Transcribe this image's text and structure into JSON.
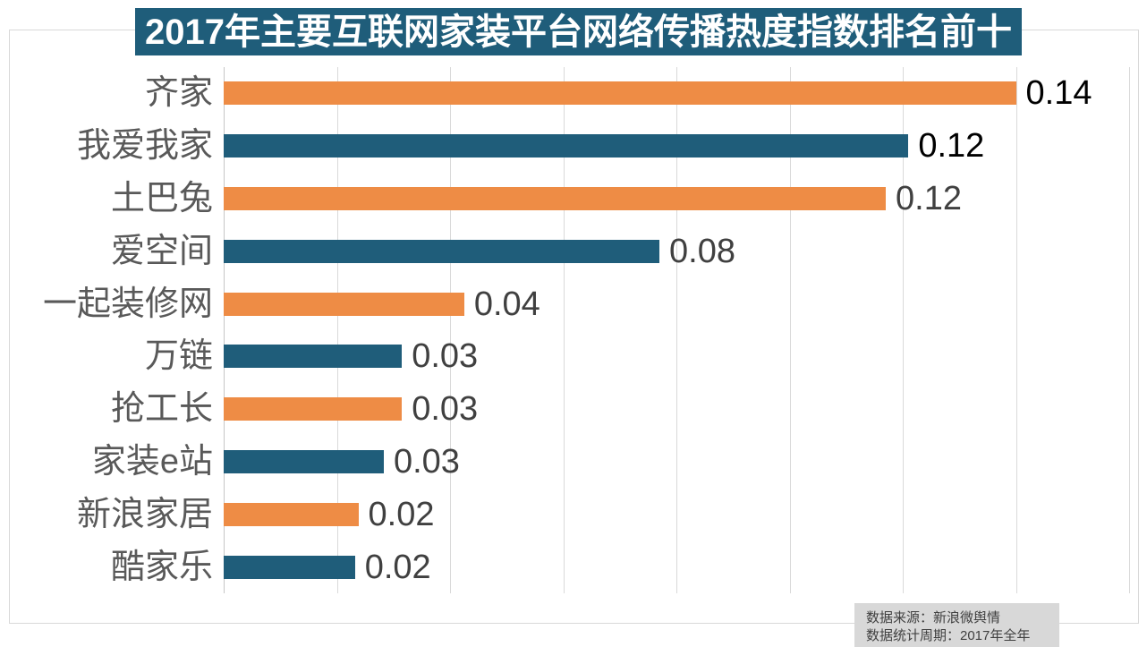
{
  "title": {
    "text": "2017年主要互联网家装平台网络传播热度指数排名前十"
  },
  "chart_data": {
    "type": "bar",
    "orientation": "horizontal",
    "title": "2017年主要互联网家装平台网络传播热度指数排名前十",
    "categories": [
      "齐家",
      "我爱我家",
      "土巴兔",
      "爱空间",
      "一起装修网",
      "万链",
      "抢工长",
      "家装e站",
      "新浪家居",
      "酷家乐"
    ],
    "values": [
      0.14,
      0.12,
      0.12,
      0.08,
      0.04,
      0.03,
      0.03,
      0.03,
      0.02,
      0.02
    ],
    "value_labels": [
      "0.14",
      "0.12",
      "0.12",
      "0.08",
      "0.04",
      "0.03",
      "0.03",
      "0.03",
      "0.02",
      "0.02"
    ],
    "bar_visual_values": [
      0.14,
      0.121,
      0.117,
      0.077,
      0.0425,
      0.0315,
      0.0315,
      0.0283,
      0.0238,
      0.0232
    ],
    "bar_colors": [
      "#EE8C45",
      "#1F5D7A",
      "#EE8C45",
      "#1F5D7A",
      "#EE8C45",
      "#1F5D7A",
      "#EE8C45",
      "#1F5D7A",
      "#EE8C45",
      "#1F5D7A"
    ],
    "value_label_colors": [
      "#000000",
      "#000000",
      "#404040",
      "#404040",
      "#404040",
      "#404040",
      "#404040",
      "#404040",
      "#404040",
      "#404040"
    ],
    "xlabel": "",
    "ylabel": "",
    "xlim": [
      0,
      0.16
    ],
    "gridline_interval": 0.02,
    "grid": "vertical gridlines on, light gray",
    "legend": "none"
  },
  "colors": {
    "orange": "#EE8C45",
    "blue": "#1F5D7A",
    "title_bg": "#1F5D7A",
    "title_text": "#FFFFFF",
    "gridline": "#D9D9D9",
    "frame_border": "#D9D9D9",
    "category_label": "#595959",
    "value_label": "#404040",
    "footer_bg": "#D8D8D8",
    "footer_text": "#404040"
  },
  "footer": {
    "line1": "数据来源：新浪微舆情",
    "line2": "数据统计周期：2017年全年"
  }
}
